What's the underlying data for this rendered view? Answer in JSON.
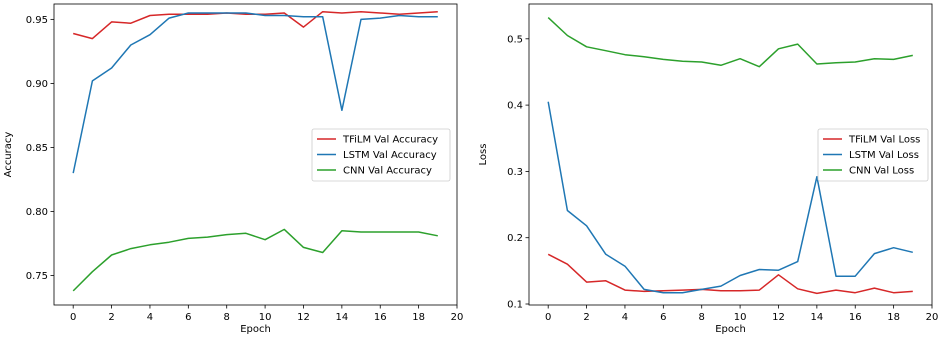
{
  "chart_data": [
    {
      "type": "line",
      "title": "",
      "xlabel": "Epoch",
      "ylabel": "Accuracy",
      "xlim": [
        -1,
        20
      ],
      "ylim": [
        0.727,
        0.962
      ],
      "xticks": [
        "0",
        "2",
        "4",
        "6",
        "8",
        "10",
        "12",
        "14",
        "16",
        "18",
        "20"
      ],
      "yticks": [
        "0.75",
        "0.80",
        "0.85",
        "0.90",
        "0.95"
      ],
      "grid": false,
      "legend_position": "center right",
      "x": [
        0,
        1,
        2,
        3,
        4,
        5,
        6,
        7,
        8,
        9,
        10,
        11,
        12,
        13,
        14,
        15,
        16,
        17,
        18,
        19
      ],
      "series": [
        {
          "name": "TFiLM Val Accuracy",
          "color": "#d62728",
          "values": [
            0.939,
            0.935,
            0.948,
            0.947,
            0.953,
            0.954,
            0.954,
            0.954,
            0.955,
            0.954,
            0.954,
            0.955,
            0.944,
            0.956,
            0.955,
            0.956,
            0.955,
            0.954,
            0.955,
            0.956
          ]
        },
        {
          "name": "LSTM Val Accuracy",
          "color": "#1f77b4",
          "values": [
            0.83,
            0.902,
            0.912,
            0.93,
            0.938,
            0.951,
            0.955,
            0.955,
            0.955,
            0.955,
            0.953,
            0.953,
            0.952,
            0.952,
            0.879,
            0.95,
            0.951,
            0.953,
            0.952,
            0.952
          ]
        },
        {
          "name": "CNN Val Accuracy",
          "color": "#2ca02c",
          "values": [
            0.738,
            0.753,
            0.766,
            0.771,
            0.774,
            0.776,
            0.779,
            0.78,
            0.782,
            0.783,
            0.778,
            0.786,
            0.772,
            0.768,
            0.785,
            0.784,
            0.784,
            0.784,
            0.784,
            0.781
          ]
        }
      ]
    },
    {
      "type": "line",
      "title": "",
      "xlabel": "Epoch",
      "ylabel": "Loss",
      "xlim": [
        -1,
        20
      ],
      "ylim": [
        0.0985,
        0.5525
      ],
      "xticks": [
        "0",
        "2",
        "4",
        "6",
        "8",
        "10",
        "12",
        "14",
        "16",
        "18",
        "20"
      ],
      "yticks": [
        "0.1",
        "0.2",
        "0.3",
        "0.4",
        "0.5"
      ],
      "grid": false,
      "legend_position": "center right",
      "x": [
        0,
        1,
        2,
        3,
        4,
        5,
        6,
        7,
        8,
        9,
        10,
        11,
        12,
        13,
        14,
        15,
        16,
        17,
        18,
        19
      ],
      "series": [
        {
          "name": "TFiLM Val Loss",
          "color": "#d62728",
          "values": [
            0.175,
            0.16,
            0.133,
            0.135,
            0.121,
            0.119,
            0.12,
            0.121,
            0.122,
            0.12,
            0.12,
            0.121,
            0.144,
            0.123,
            0.116,
            0.121,
            0.117,
            0.124,
            0.117,
            0.119
          ]
        },
        {
          "name": "LSTM Val Loss",
          "color": "#1f77b4",
          "values": [
            0.405,
            0.241,
            0.218,
            0.175,
            0.157,
            0.122,
            0.117,
            0.117,
            0.122,
            0.127,
            0.143,
            0.152,
            0.151,
            0.164,
            0.292,
            0.142,
            0.142,
            0.176,
            0.185,
            0.178
          ]
        },
        {
          "name": "CNN Val Loss",
          "color": "#2ca02c",
          "values": [
            0.532,
            0.505,
            0.488,
            0.482,
            0.476,
            0.473,
            0.469,
            0.466,
            0.465,
            0.46,
            0.47,
            0.458,
            0.485,
            0.492,
            0.462,
            0.464,
            0.465,
            0.47,
            0.469,
            0.475
          ]
        }
      ]
    }
  ]
}
